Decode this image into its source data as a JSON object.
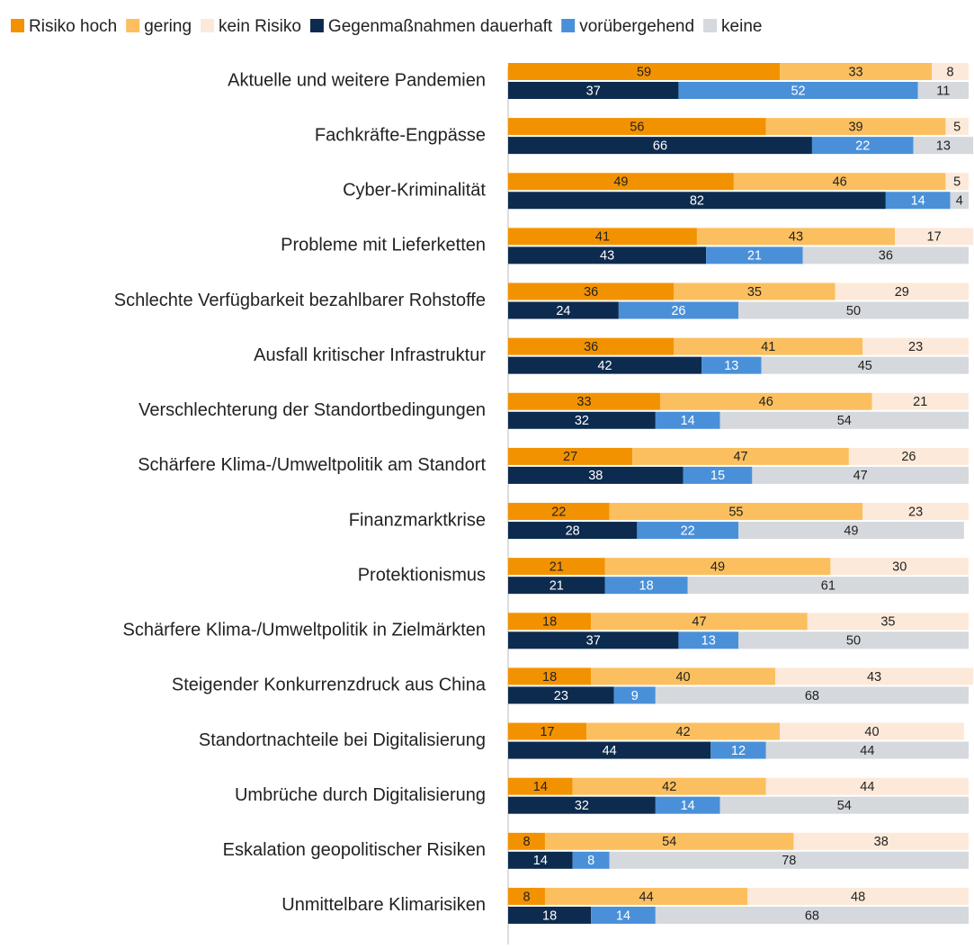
{
  "chart_data": {
    "type": "grouped-stacked-barh",
    "categories": [
      "Aktuelle und weitere Pandemien",
      "Fachkräfte-Engpässe",
      "Cyber-Kriminalität",
      "Probleme mit Lieferketten",
      "Schlechte Verfügbarkeit bezahlbarer Rohstoffe",
      "Ausfall kritischer Infrastruktur",
      "Verschlechterung der Standortbedingungen",
      "Schärfere Klima-/Umweltpolitik am Standort",
      "Finanzmarktkrise",
      "Protektionismus",
      "Schärfere Klima-/Umweltpolitik in Zielmärkten",
      "Steigender Konkurrenzdruck aus China",
      "Standortnachteile bei Digitalisierung",
      "Umbrüche durch Digitalisierung",
      "Eskalation geopolitischer Risiken",
      "Unmittelbare Klimarisiken"
    ],
    "series": [
      {
        "name": "Risiko hoch",
        "color": "#f39200",
        "label_color": "#222222",
        "stack": 0,
        "values": [
          59,
          56,
          49,
          41,
          36,
          36,
          33,
          27,
          22,
          21,
          18,
          18,
          17,
          14,
          8,
          8
        ]
      },
      {
        "name": "gering",
        "color": "#fbbf5f",
        "label_color": "#222222",
        "stack": 0,
        "values": [
          33,
          39,
          46,
          43,
          35,
          41,
          46,
          47,
          55,
          49,
          47,
          40,
          42,
          42,
          54,
          44
        ]
      },
      {
        "name": "kein Risiko",
        "color": "#fde9d9",
        "label_color": "#222222",
        "stack": 0,
        "values": [
          8,
          5,
          5,
          17,
          29,
          23,
          21,
          26,
          23,
          30,
          35,
          43,
          40,
          44,
          38,
          48
        ]
      },
      {
        "name": "Gegenmaßnahmen dauerhaft",
        "color": "#0d2b4e",
        "label_color": "#ffffff",
        "stack": 1,
        "values": [
          37,
          66,
          82,
          43,
          24,
          42,
          32,
          38,
          28,
          21,
          37,
          23,
          44,
          32,
          14,
          18
        ]
      },
      {
        "name": "vorübergehend",
        "color": "#4a90d9",
        "label_color": "#ffffff",
        "stack": 1,
        "values": [
          52,
          22,
          14,
          21,
          26,
          13,
          14,
          15,
          22,
          18,
          13,
          9,
          12,
          14,
          8,
          14
        ]
      },
      {
        "name": "keine",
        "color": "#d5d8dc",
        "label_color": "#222222",
        "stack": 1,
        "values": [
          11,
          13,
          4,
          36,
          50,
          45,
          54,
          47,
          49,
          61,
          50,
          68,
          44,
          54,
          78,
          68
        ]
      }
    ],
    "xlim": [
      0,
      100
    ]
  }
}
